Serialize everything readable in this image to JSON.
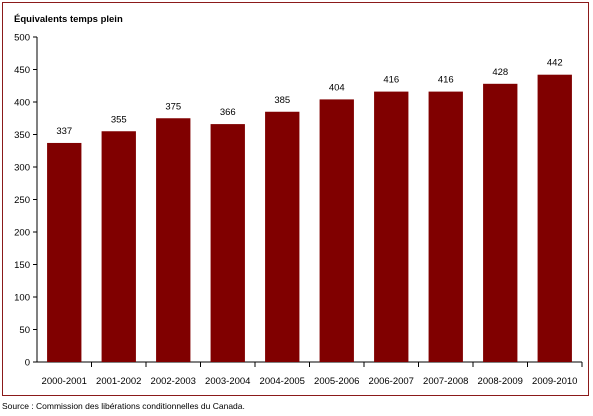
{
  "chart_data": {
    "type": "bar",
    "ylabel": "Équivalents temps plein",
    "categories": [
      "2000-2001",
      "2001-2002",
      "2002-2003",
      "2003-2004",
      "2004-2005",
      "2005-2006",
      "2006-2007",
      "2007-2008",
      "2008-2009",
      "2009-2010"
    ],
    "values": [
      337,
      355,
      375,
      366,
      385,
      404,
      416,
      416,
      428,
      442
    ],
    "ylim": [
      0,
      500
    ],
    "yticks": [
      0,
      50,
      100,
      150,
      200,
      250,
      300,
      350,
      400,
      450,
      500
    ],
    "grid": false,
    "legend": "none",
    "bar_color": "#800000"
  },
  "source": "Source : Commission des libérations conditionnelles du Canada."
}
